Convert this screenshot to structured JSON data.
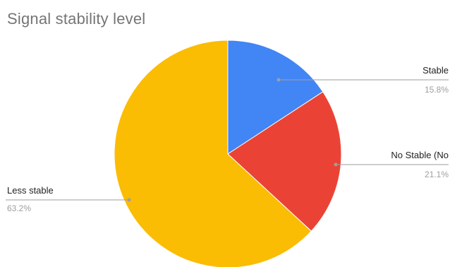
{
  "chart_data": {
    "type": "pie",
    "title": "Signal stability level",
    "slices": [
      {
        "label": "Stable",
        "value": 15.8,
        "percent_label": "15.8%",
        "color": "#4285f4"
      },
      {
        "label": "No Stable (No",
        "value": 21.1,
        "percent_label": "21.1%",
        "color": "#ea4335"
      },
      {
        "label": "Less stable",
        "value": 63.2,
        "percent_label": "63.2%",
        "color": "#fbbc04"
      }
    ],
    "start_angle_deg": 0,
    "direction": "clockwise",
    "legend": "labels-outside-with-leader-lines"
  }
}
